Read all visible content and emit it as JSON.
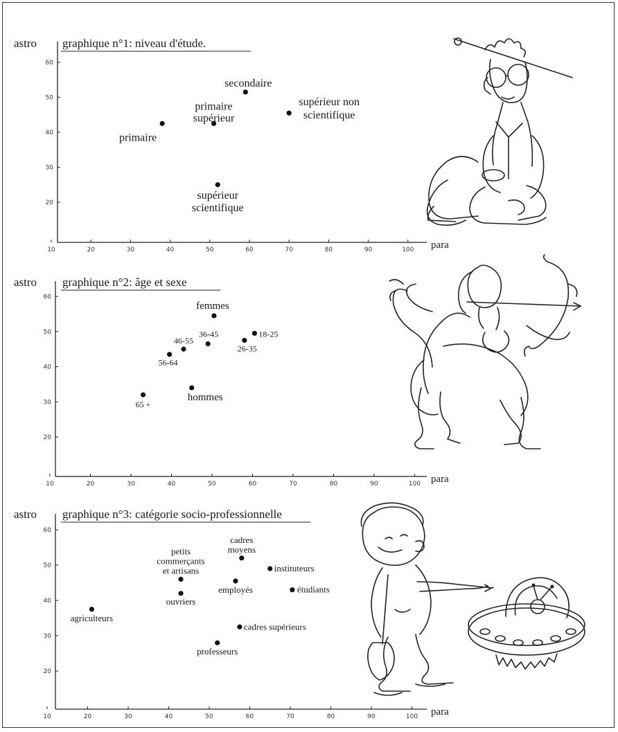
{
  "chart_data": [
    {
      "type": "scatter",
      "title": "graphique n°1: niveau d'étude.",
      "ylabel": "astro",
      "xlabel": "para",
      "xticks": [
        10,
        20,
        30,
        40,
        50,
        60,
        70,
        80,
        90,
        100
      ],
      "yticks": [
        20,
        30,
        40,
        50,
        60
      ],
      "points": [
        {
          "label": "primaire",
          "x": 38,
          "y": 42.5
        },
        {
          "label": "primaire supérieur",
          "x": 51,
          "y": 42.5
        },
        {
          "label": "secondaire",
          "x": 59,
          "y": 51.5
        },
        {
          "label": "supérieur non scientifique",
          "x": 70,
          "y": 45.5
        },
        {
          "label": "supérieur scientifique",
          "x": 52,
          "y": 25
        }
      ],
      "illustration": "astrologer-figure-doodle"
    },
    {
      "type": "scatter",
      "title": "graphique n°2: âge et sexe",
      "ylabel": "astro",
      "xlabel": "para",
      "xticks": [
        10,
        20,
        30,
        40,
        50,
        60,
        70,
        80,
        90,
        100
      ],
      "yticks": [
        20,
        30,
        40,
        50,
        60
      ],
      "points": [
        {
          "label": "femmes",
          "x": 50.5,
          "y": 54.5
        },
        {
          "label": "18-25",
          "x": 60.5,
          "y": 49.5
        },
        {
          "label": "26-35",
          "x": 58,
          "y": 47.5
        },
        {
          "label": "36-45",
          "x": 49,
          "y": 46.5
        },
        {
          "label": "46-55",
          "x": 43,
          "y": 45
        },
        {
          "label": "56-64",
          "x": 39.5,
          "y": 43.5
        },
        {
          "label": "hommes",
          "x": 45,
          "y": 34
        },
        {
          "label": "65 +",
          "x": 33,
          "y": 32
        }
      ],
      "illustration": "sagittarius-centaur-doodle"
    },
    {
      "type": "scatter",
      "title": "graphique n°3: catégorie socio-professionnelle",
      "ylabel": "astro",
      "xlabel": "para",
      "xticks": [
        10,
        20,
        30,
        40,
        50,
        60,
        70,
        80,
        90,
        100
      ],
      "yticks": [
        20,
        30,
        40,
        50,
        60
      ],
      "points": [
        {
          "label": "agriculteurs",
          "x": 21,
          "y": 37.5
        },
        {
          "label": "petits commerçants et artisans",
          "x": 43,
          "y": 46
        },
        {
          "label": "ouvriers",
          "x": 43,
          "y": 42
        },
        {
          "label": "cadres moyens",
          "x": 58,
          "y": 52
        },
        {
          "label": "employés",
          "x": 56.5,
          "y": 45.5
        },
        {
          "label": "instituteurs",
          "x": 65,
          "y": 49
        },
        {
          "label": "étudiants",
          "x": 70.5,
          "y": 43
        },
        {
          "label": "cadres supérieurs",
          "x": 57.5,
          "y": 32.5
        },
        {
          "label": "professeurs",
          "x": 52,
          "y": 28
        }
      ],
      "illustrations": [
        "gardener-with-shovel-doodle",
        "flying-saucer-doodle"
      ]
    }
  ]
}
